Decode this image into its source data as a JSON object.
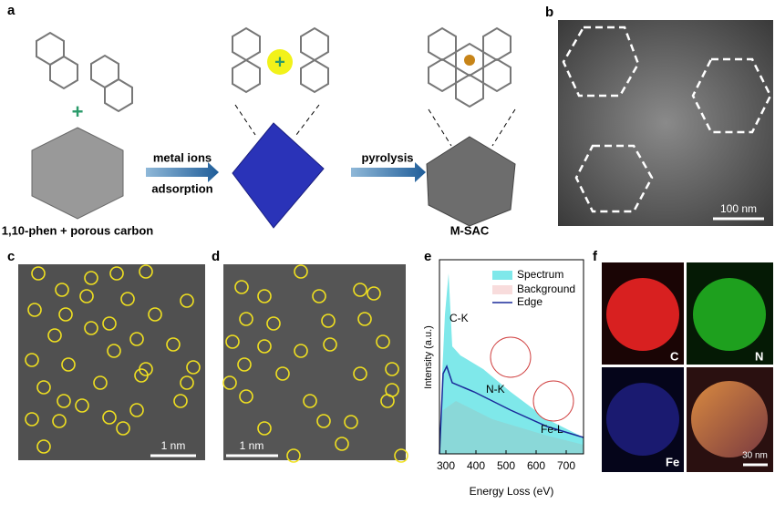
{
  "panels": {
    "a": {
      "label": "a",
      "precursor": "1,10-phen + porous carbon",
      "step1": [
        "metal ions",
        "adsorption"
      ],
      "step2": "pyrolysis",
      "product": "M-SAC"
    },
    "b": {
      "label": "b",
      "scale": "100 nm"
    },
    "c": {
      "label": "c",
      "scale": "1 nm"
    },
    "d": {
      "label": "d",
      "scale": "1 nm"
    },
    "e": {
      "label": "e",
      "legend": [
        "Spectrum",
        "Background",
        "Edge"
      ],
      "edges": [
        "C-K",
        "N-K",
        "Fe-L"
      ],
      "ylabel": "Intensity (a.u.)",
      "xlabel": "Energy Loss (eV)",
      "xticks": [
        300,
        400,
        500,
        600,
        700
      ]
    },
    "f": {
      "label": "f",
      "maps": [
        "C",
        "N",
        "Fe"
      ],
      "scale": "30 nm"
    }
  }
}
